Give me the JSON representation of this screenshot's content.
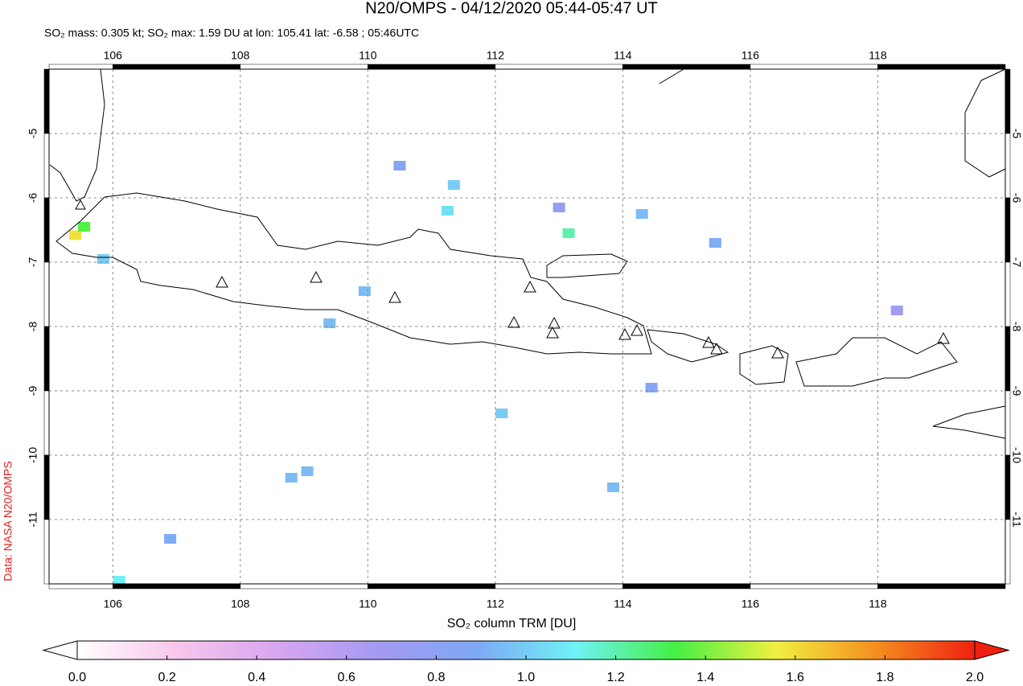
{
  "chart_data": {
    "type": "map",
    "title": "N20/OMPS - 04/12/2020 05:44-05:47 UT",
    "subtitle": "SO₂ mass: 0.305 kt; SO₂ max: 1.59 DU at lon: 105.41 lat: -6.58 ; 05:46UTC",
    "credit": "Data: NASA N20/OMPS",
    "colorbar_label": "SO₂ column TRM [DU]",
    "xlim": [
      105,
      120
    ],
    "ylim": [
      -12,
      -4
    ],
    "xticks": [
      106,
      108,
      110,
      112,
      114,
      116,
      118
    ],
    "yticks": [
      -5,
      -6,
      -7,
      -8,
      -9,
      -10,
      -11
    ],
    "grid": true,
    "clim": [
      0,
      2
    ],
    "cticks": [
      {
        "value": 0,
        "label": "0.0"
      },
      0.2,
      0.4,
      0.6,
      0.8,
      {
        "value": 1,
        "label": "1.0"
      },
      1.2,
      1.4,
      1.6,
      1.8,
      {
        "value": 2,
        "label": "2.0"
      }
    ],
    "colormap": [
      "#ffffff",
      "#f7c6ec",
      "#d8a6f0",
      "#a59af2",
      "#7fa8f5",
      "#6ff2f5",
      "#44f044",
      "#f0f040",
      "#f59020",
      "#f02010"
    ],
    "pixels": {
      "lon": [
        105.41,
        105.55,
        105.85,
        111.25,
        111.35,
        113.15,
        114.3,
        115.45,
        109.4,
        109.95,
        108.8,
        109.05,
        112.1,
        113.85,
        114.45,
        106.1,
        106.9,
        113.0,
        110.5,
        118.3
      ],
      "lat": [
        -6.58,
        -6.45,
        -6.95,
        -6.2,
        -5.8,
        -6.55,
        -6.25,
        -6.7,
        -7.95,
        -7.45,
        -10.35,
        -10.25,
        -9.35,
        -10.5,
        -8.95,
        -11.95,
        -11.3,
        -6.15,
        -5.5,
        -7.75
      ],
      "value": [
        1.59,
        1.35,
        1.0,
        1.05,
        1.0,
        1.2,
        0.95,
        0.9,
        0.95,
        0.95,
        0.95,
        0.95,
        1.0,
        0.95,
        0.85,
        1.1,
        0.9,
        0.75,
        0.85,
        0.7
      ]
    }
  }
}
